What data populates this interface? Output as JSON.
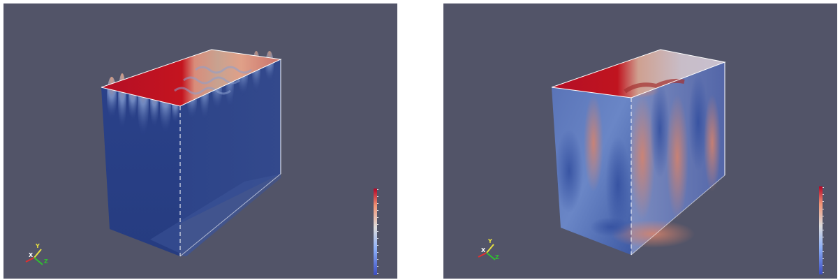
{
  "views": [
    {
      "id": "left",
      "colorbar": {
        "colors": [
          "#3b4cc0",
          "#8caff8",
          "#dddddd",
          "#f29576",
          "#b40426"
        ],
        "ticks": [
          "",
          "",
          "",
          "",
          "",
          "",
          "",
          "",
          "",
          "",
          "",
          "",
          ""
        ],
        "title": ""
      },
      "axes": {
        "x": "X",
        "y": "Y",
        "z": "Z"
      }
    },
    {
      "id": "right",
      "colorbar": {
        "colors": [
          "#3b4cc0",
          "#8caff8",
          "#dddddd",
          "#f29576",
          "#b40426"
        ],
        "ticks": [
          "",
          "",
          "",
          "",
          "",
          "",
          "",
          "",
          "",
          "",
          "",
          "",
          ""
        ],
        "title": ""
      },
      "axes": {
        "x": "X",
        "y": "Y",
        "z": "Z"
      }
    }
  ],
  "colors": {
    "background": "#525468",
    "cold": "#2e4590",
    "hot": "#b40f26",
    "axis_x": "#e03030",
    "axis_y": "#e8e040",
    "axis_z": "#30c030"
  }
}
